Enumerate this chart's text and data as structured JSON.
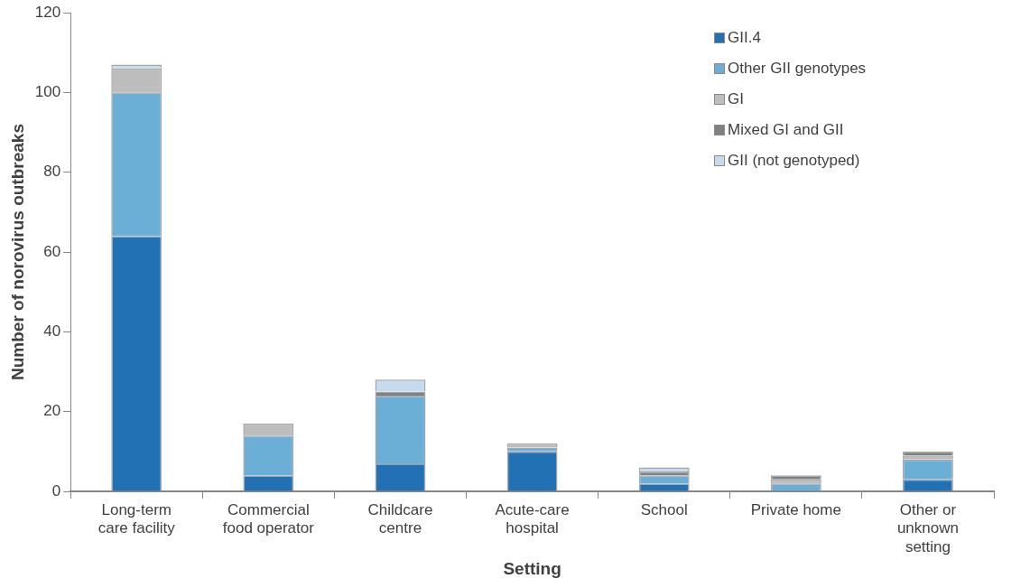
{
  "chart_data": {
    "type": "bar",
    "stacked": true,
    "xlabel": "Setting",
    "ylabel": "Number of norovirus outbreaks",
    "categories": [
      "Long-term care facility",
      "Commercial food operator",
      "Childcare centre",
      "Acute-care hospital",
      "School",
      "Private home",
      "Other or unknown setting"
    ],
    "series": [
      {
        "name": "GII.4",
        "color": "#2271b5",
        "values": [
          64,
          4,
          7,
          10,
          2,
          0,
          3
        ]
      },
      {
        "name": "Other GII genotypes",
        "color": "#6baed6",
        "values": [
          36,
          10,
          17,
          1,
          2,
          2,
          5
        ]
      },
      {
        "name": "GI",
        "color": "#bdbdbd",
        "values": [
          6,
          3,
          0,
          1,
          0,
          1,
          1
        ]
      },
      {
        "name": "Mixed GI and GII",
        "color": "#808080",
        "values": [
          0,
          0,
          1,
          0,
          1,
          1,
          1
        ]
      },
      {
        "name": "GII (not genotyped)",
        "color": "#c6dbef",
        "values": [
          1,
          0,
          3,
          0,
          1,
          0,
          0
        ]
      }
    ],
    "ylim": [
      0,
      120
    ],
    "yticks": [
      0,
      20,
      40,
      60,
      80,
      100,
      120
    ],
    "grid": false,
    "legend": "top right"
  }
}
